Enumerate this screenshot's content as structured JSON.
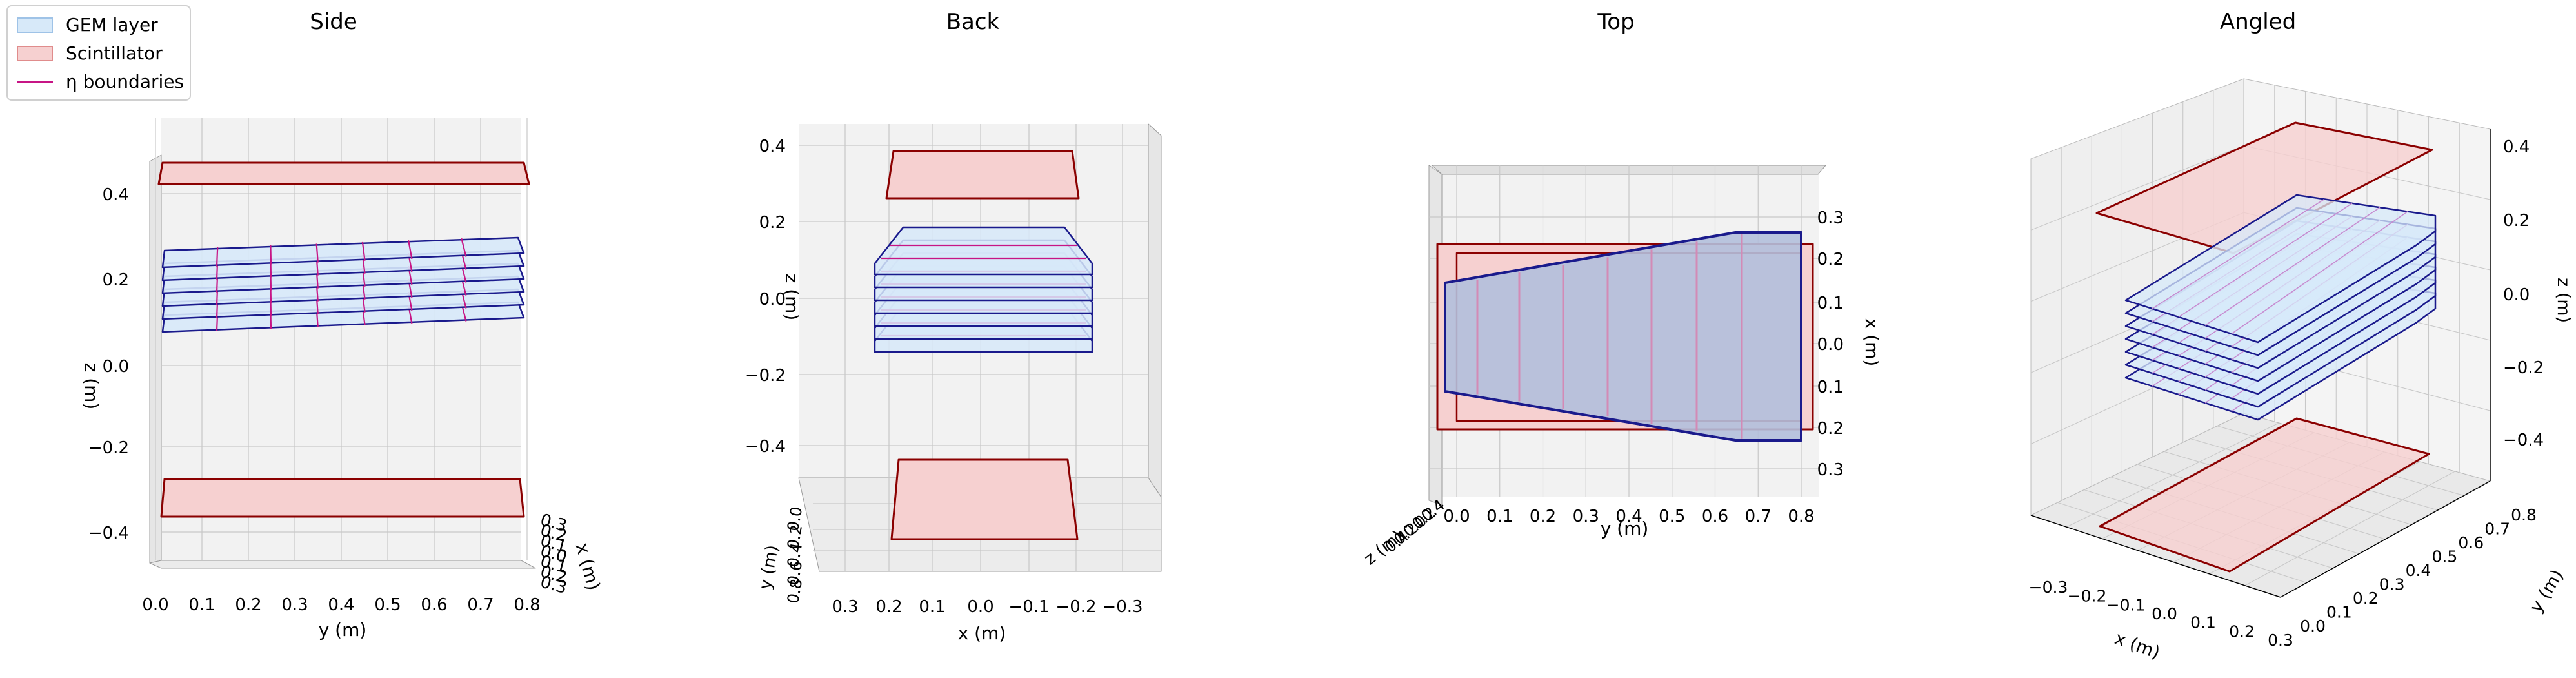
{
  "legend": {
    "gem": "GEM layer",
    "scint": "Scintillator",
    "eta": "η boundaries"
  },
  "panels": {
    "side": {
      "title": "Side",
      "xlabel": "y (m)",
      "ylabel": "z (m)",
      "depth_label": "x (m)",
      "xticks": [
        "0.0",
        "0.1",
        "0.2",
        "0.3",
        "0.4",
        "0.5",
        "0.6",
        "0.7",
        "0.8"
      ],
      "zticks": [
        "0.4",
        "0.2",
        "0.0",
        "−0.2",
        "−0.4"
      ],
      "depth_ticks": [
        "0.3",
        "0.2",
        "0.1",
        "0.0",
        "0.1",
        "0.2",
        "0.3"
      ]
    },
    "back": {
      "title": "Back",
      "xlabel": "x (m)",
      "ylabel": "z (m)",
      "depth_label": "y (m)",
      "xticks": [
        "0.3",
        "0.2",
        "0.1",
        "0.0",
        "−0.1",
        "−0.2",
        "−0.3"
      ],
      "zticks": [
        "0.4",
        "0.2",
        "0.0",
        "−0.2",
        "−0.4"
      ],
      "depth_ticks": [
        "0.0",
        "0.2",
        "0.4",
        "0.6",
        "0.8"
      ]
    },
    "top": {
      "title": "Top",
      "xlabel": "y (m)",
      "ylabel": "x (m)",
      "depth_label": "z (m)",
      "xticks": [
        "0.0",
        "0.1",
        "0.2",
        "0.3",
        "0.4",
        "0.5",
        "0.6",
        "0.7",
        "0.8"
      ],
      "yticks": [
        "0.3",
        "0.2",
        "0.1",
        "0.0",
        "0.1",
        "0.2",
        "0.3"
      ],
      "depth_ticks": [
        "0.4",
        "0.2",
        "0.0",
        "0.2",
        "0.4"
      ]
    },
    "angled": {
      "title": "Angled",
      "xlabel": "x (m)",
      "ylabel": "y (m)",
      "zlabel": "z (m)",
      "xticks": [
        "−0.3",
        "−0.2",
        "−0.1",
        "0.0",
        "0.1",
        "0.2",
        "0.3"
      ],
      "yticks": [
        "0.0",
        "0.1",
        "0.2",
        "0.3",
        "0.4",
        "0.5",
        "0.6",
        "0.7",
        "0.8"
      ],
      "zticks": [
        "0.4",
        "0.2",
        "0.0",
        "−0.2",
        "−0.4"
      ]
    }
  },
  "colors": {
    "gem_fill": "#d7e9f9",
    "gem_edge": "#1a1a8c",
    "scint_fill": "#f6d0d0",
    "scint_edge": "#8b0000",
    "eta": "#c71585",
    "pane": "#f2f2f2",
    "grid": "#c8c8c8"
  }
}
